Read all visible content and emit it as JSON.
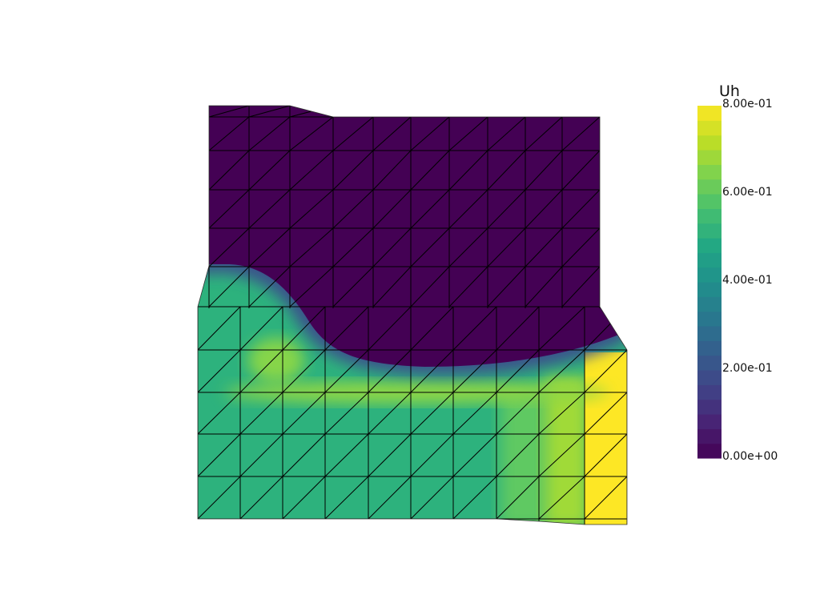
{
  "colorbar": {
    "title": "Uh",
    "ticks": [
      "8.00e-01",
      "6.00e-01",
      "4.00e-01",
      "2.00e-01",
      "0.00e+00"
    ],
    "tick_values": [
      0.8,
      0.6,
      0.4,
      0.2,
      0.0
    ],
    "range": [
      0.0,
      0.8
    ],
    "colormap": "viridis",
    "bands": 24
  },
  "colors": {
    "low": "#440154",
    "mid": "#21918c",
    "high": "#fde725",
    "mesh_edges": "#000000",
    "background": "#ffffff"
  }
}
